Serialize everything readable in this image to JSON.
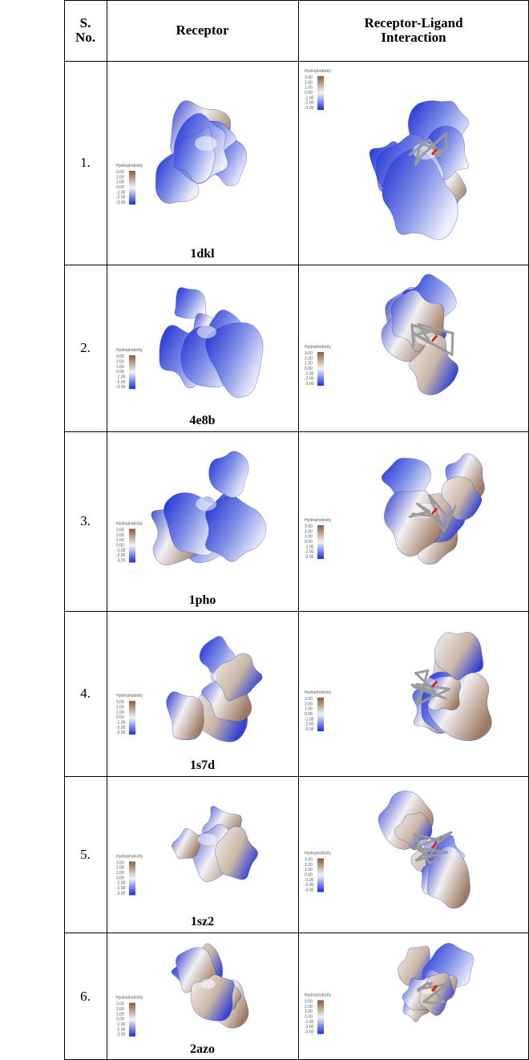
{
  "header": [
    "S. No.",
    "Receptor",
    "Receptor-Ligand Interaction"
  ],
  "legend": {
    "title": "Hydrophobicity",
    "ticks": [
      "3.00",
      "2.00",
      "1.00",
      "0.00",
      "-1.00",
      "-2.00",
      "-3.00"
    ]
  },
  "rows": [
    {
      "number": "1.",
      "receptor": "1dkl"
    },
    {
      "number": "2.",
      "receptor": "4e8b"
    },
    {
      "number": "3.",
      "receptor": "1pho"
    },
    {
      "number": "4.",
      "receptor": "1s7d"
    },
    {
      "number": "5.",
      "receptor": "1sz2"
    },
    {
      "number": "6.",
      "receptor": "2azo"
    }
  ]
}
